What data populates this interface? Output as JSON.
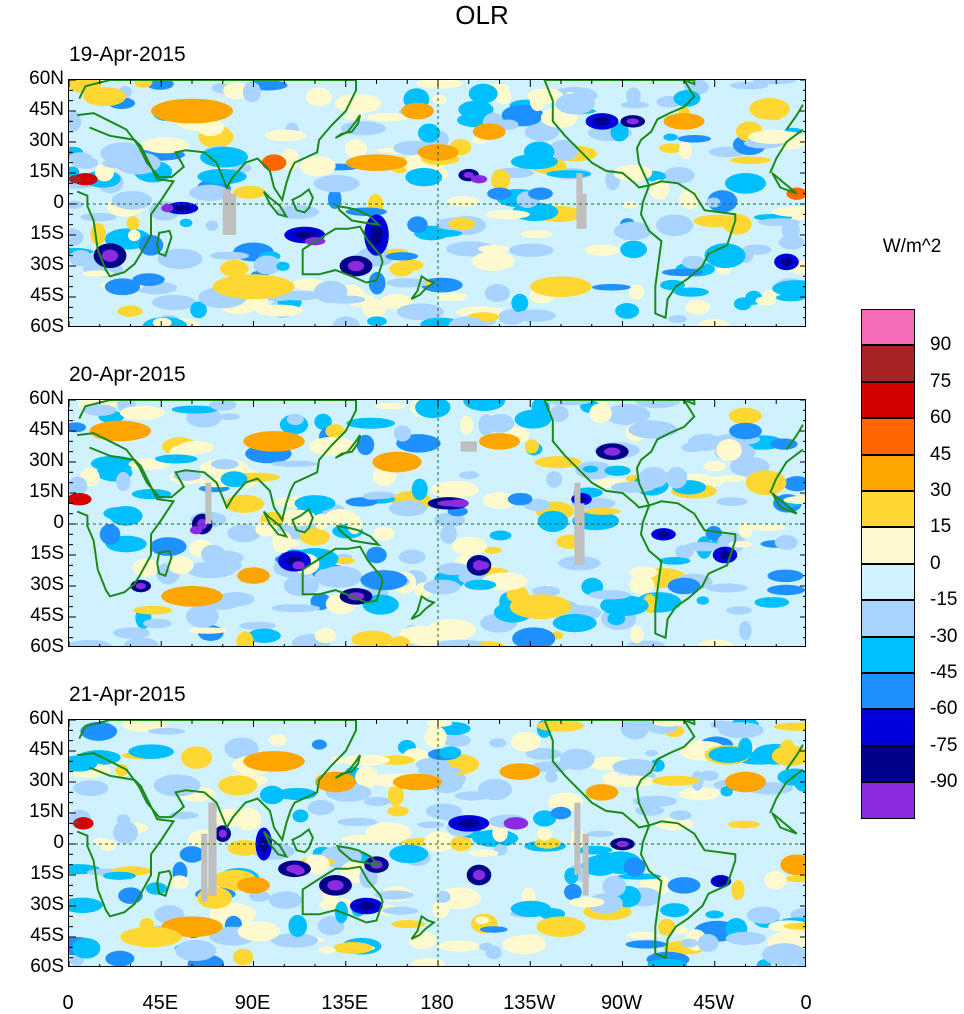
{
  "title": "OLR",
  "units": "W/m^2",
  "panels": [
    {
      "date": "19-Apr-2015"
    },
    {
      "date": "20-Apr-2015"
    },
    {
      "date": "21-Apr-2015"
    }
  ],
  "lat_labels": [
    "60N",
    "45N",
    "30N",
    "15N",
    "0",
    "15S",
    "30S",
    "45S",
    "60S"
  ],
  "lon_labels": [
    "0",
    "45E",
    "90E",
    "135E",
    "180",
    "135W",
    "90W",
    "45W",
    "0"
  ],
  "colorbar": {
    "labels": [
      "90",
      "75",
      "60",
      "45",
      "30",
      "15",
      "0",
      "-15",
      "-30",
      "-45",
      "-60",
      "-75",
      "-90"
    ],
    "colors": [
      "#f56cb8",
      "#a82424",
      "#d40000",
      "#ff6600",
      "#ffa500",
      "#ffd733",
      "#fffacd",
      "#d0f2ff",
      "#a8d4ff",
      "#00bfff",
      "#1e90ff",
      "#0000dd",
      "#00008b",
      "#8a2be2"
    ]
  },
  "colors": {
    "coast": "#1a8a1a",
    "missing": "#bfbfbf"
  }
}
